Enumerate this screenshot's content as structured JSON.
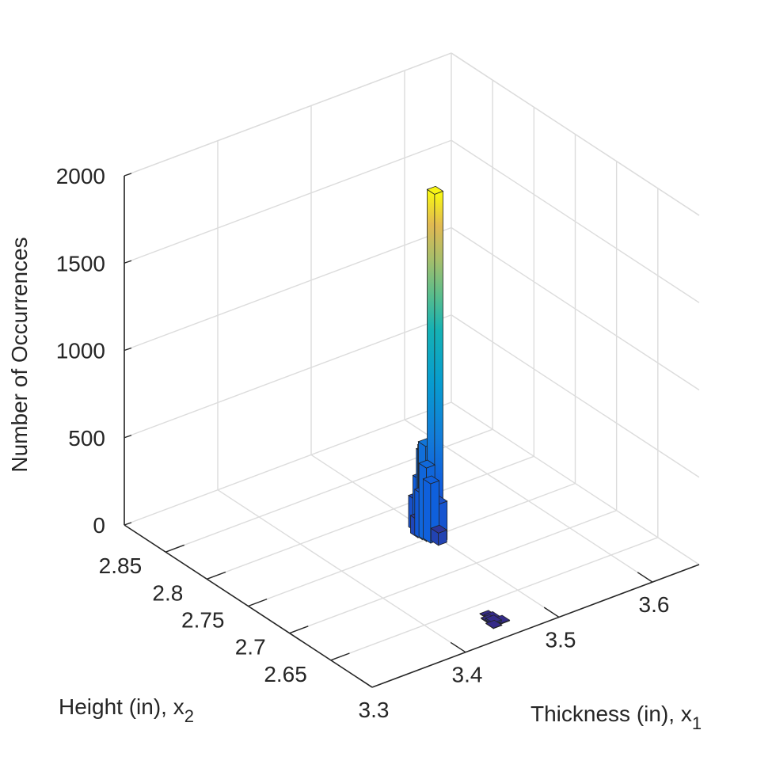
{
  "chart_data": {
    "type": "bar3d-histogram",
    "title": "",
    "xlabel": "Thickness (in), x",
    "xlabel_sub": "1",
    "ylabel": "Height (in), x",
    "ylabel_sub": "2",
    "zlabel": "Number of Occurrences",
    "xlim": [
      3.3,
      3.65
    ],
    "ylim": [
      2.6,
      2.9
    ],
    "zlim": [
      0,
      2000
    ],
    "xticks": [
      3.3,
      3.4,
      3.5,
      3.6
    ],
    "xtick_labels": [
      "3.3",
      "3.4",
      "3.5",
      "3.6"
    ],
    "yticks": [
      2.65,
      2.7,
      2.75,
      2.8,
      2.85
    ],
    "ytick_labels": [
      "2.65",
      "2.7",
      "2.75",
      "2.8",
      "2.85"
    ],
    "zticks": [
      0,
      500,
      1000,
      1500,
      2000
    ],
    "ztick_labels": [
      "0",
      "500",
      "1000",
      "1500",
      "2000"
    ],
    "grid": true,
    "colormap": "parula",
    "bars": [
      {
        "x": 3.5,
        "y": 2.75,
        "count": 1980
      },
      {
        "x": 3.495,
        "y": 2.755,
        "count": 530
      },
      {
        "x": 3.497,
        "y": 2.758,
        "count": 500
      },
      {
        "x": 3.499,
        "y": 2.762,
        "count": 460
      },
      {
        "x": 3.493,
        "y": 2.752,
        "count": 420
      },
      {
        "x": 3.501,
        "y": 2.76,
        "count": 380
      },
      {
        "x": 3.494,
        "y": 2.748,
        "count": 340
      },
      {
        "x": 3.498,
        "y": 2.765,
        "count": 300
      },
      {
        "x": 3.492,
        "y": 2.756,
        "count": 260
      },
      {
        "x": 3.5,
        "y": 2.745,
        "count": 220
      },
      {
        "x": 3.496,
        "y": 2.768,
        "count": 180
      },
      {
        "x": 3.503,
        "y": 2.752,
        "count": 140
      },
      {
        "x": 3.491,
        "y": 2.76,
        "count": 100
      },
      {
        "x": 3.497,
        "y": 2.742,
        "count": 70
      },
      {
        "x": 3.505,
        "y": 2.758,
        "count": 45
      },
      {
        "x": 3.502,
        "y": 2.766,
        "count": 25
      },
      {
        "x": 3.452,
        "y": 2.625,
        "count": 8
      },
      {
        "x": 3.455,
        "y": 2.63,
        "count": 6
      },
      {
        "x": 3.45,
        "y": 2.628,
        "count": 5
      },
      {
        "x": 3.458,
        "y": 2.622,
        "count": 4
      },
      {
        "x": 3.454,
        "y": 2.634,
        "count": 3
      },
      {
        "x": 3.448,
        "y": 2.62,
        "count": 2
      }
    ]
  }
}
